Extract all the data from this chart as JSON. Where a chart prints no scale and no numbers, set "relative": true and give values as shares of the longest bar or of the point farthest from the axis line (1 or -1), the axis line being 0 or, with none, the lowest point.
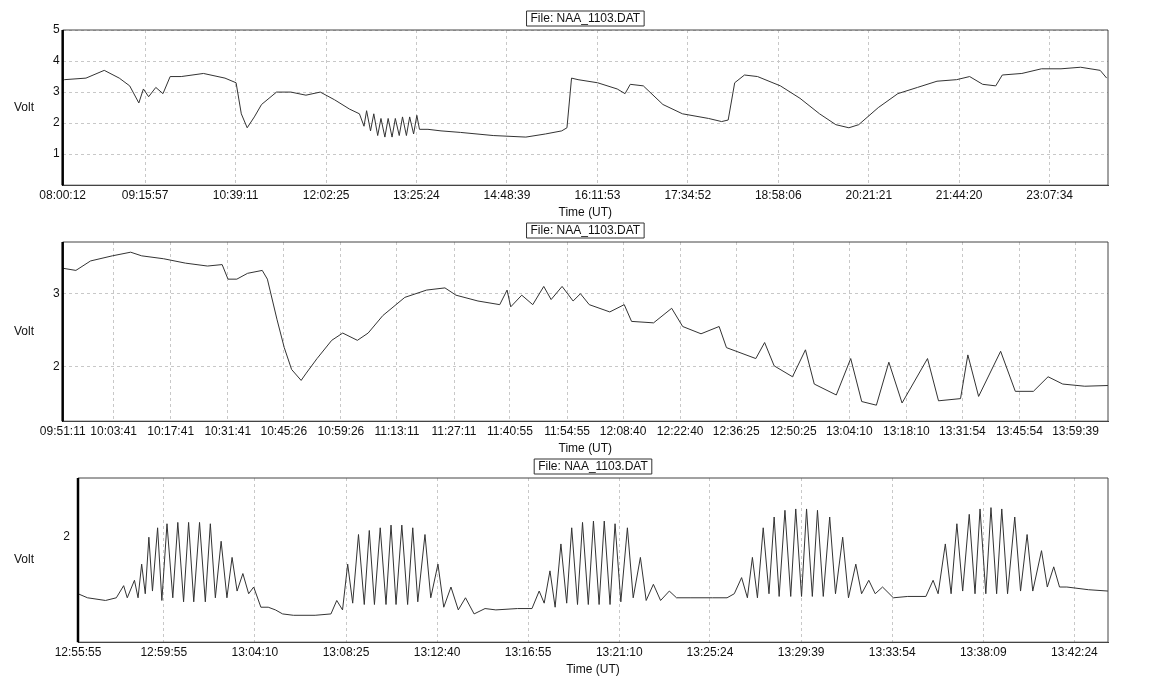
{
  "chart_data": [
    {
      "type": "line",
      "title": "File: NAA_1103.DAT",
      "xlabel": "Time (UT)",
      "ylabel": "Volt",
      "color": "#333333",
      "x": [
        8.003,
        8.03,
        8.36,
        8.64,
        8.87,
        9.03,
        9.17,
        9.24,
        9.32,
        9.43,
        9.54,
        9.65,
        9.82,
        10.16,
        10.49,
        10.66,
        10.74,
        10.83,
        10.94,
        11.05,
        11.28,
        11.5,
        11.73,
        11.95,
        12.17,
        12.4,
        12.55,
        12.62,
        12.66,
        12.72,
        12.77,
        12.83,
        12.88,
        12.94,
        12.99,
        13.05,
        13.1,
        13.16,
        13.21,
        13.27,
        13.32,
        13.38,
        13.43,
        13.47,
        13.6,
        13.8,
        14.1,
        14.6,
        15.1,
        15.4,
        15.65,
        15.73,
        15.8,
        15.9,
        16.2,
        16.5,
        16.62,
        16.7,
        16.9,
        17.2,
        17.5,
        17.9,
        18.1,
        18.2,
        18.3,
        18.45,
        18.65,
        19.0,
        19.3,
        19.6,
        19.85,
        20.05,
        20.2,
        20.5,
        20.8,
        21.1,
        21.4,
        21.7,
        21.9,
        22.1,
        22.3,
        22.4,
        22.7,
        23.0,
        23.3,
        23.6,
        23.9,
        24.0
      ],
      "values": [
        3.35,
        3.4,
        3.45,
        3.7,
        3.45,
        3.2,
        2.65,
        3.1,
        2.85,
        3.15,
        2.95,
        3.5,
        3.5,
        3.6,
        3.45,
        3.3,
        2.3,
        1.85,
        2.2,
        2.6,
        3.0,
        3.0,
        2.9,
        3.0,
        2.75,
        2.45,
        2.3,
        1.9,
        2.4,
        1.75,
        2.3,
        1.6,
        2.15,
        1.55,
        2.15,
        1.55,
        2.15,
        1.6,
        2.2,
        1.6,
        2.2,
        1.65,
        2.25,
        1.8,
        1.8,
        1.75,
        1.7,
        1.6,
        1.55,
        1.65,
        1.75,
        1.85,
        3.45,
        3.4,
        3.3,
        3.1,
        2.95,
        3.25,
        3.2,
        2.6,
        2.3,
        2.15,
        2.05,
        2.1,
        3.3,
        3.55,
        3.5,
        3.2,
        2.8,
        2.3,
        1.95,
        1.85,
        1.95,
        2.5,
        2.95,
        3.15,
        3.35,
        3.4,
        3.5,
        3.25,
        3.2,
        3.55,
        3.6,
        3.75,
        3.75,
        3.8,
        3.7,
        3.45
      ],
      "xlim": [
        8.003,
        24.02
      ],
      "xticks": [
        {
          "value": 8.0033,
          "label": "08:00:12"
        },
        {
          "value": 9.2658,
          "label": "09:15:57"
        },
        {
          "value": 10.6531,
          "label": "10:39:11"
        },
        {
          "value": 12.0403,
          "label": "12:02:25"
        },
        {
          "value": 13.4233,
          "label": "13:25:24"
        },
        {
          "value": 14.8108,
          "label": "14:48:39"
        },
        {
          "value": 16.1981,
          "label": "16:11:53"
        },
        {
          "value": 17.5811,
          "label": "17:34:52"
        },
        {
          "value": 18.9683,
          "label": "18:58:06"
        },
        {
          "value": 20.3558,
          "label": "20:21:21"
        },
        {
          "value": 21.7389,
          "label": "21:44:20"
        },
        {
          "value": 23.1261,
          "label": "23:07:34"
        }
      ],
      "ylim": [
        0,
        5
      ],
      "yticks": [
        1,
        2,
        3,
        4,
        5
      ],
      "grid": true
    },
    {
      "type": "line",
      "title": "File: NAA_1103.DAT",
      "xlabel": "Time (UT)",
      "ylabel": "Volt",
      "color": "#333333",
      "x": [
        9.853,
        9.907,
        9.967,
        10.056,
        10.131,
        10.176,
        10.266,
        10.355,
        10.445,
        10.505,
        10.529,
        10.565,
        10.609,
        10.669,
        10.69,
        10.729,
        10.759,
        10.789,
        10.828,
        10.849,
        10.893,
        10.953,
        10.998,
        11.058,
        11.102,
        11.162,
        11.252,
        11.341,
        11.416,
        11.461,
        11.551,
        11.64,
        11.67,
        11.685,
        11.73,
        11.775,
        11.82,
        11.85,
        11.895,
        11.94,
        11.97,
        12.006,
        12.09,
        12.149,
        12.179,
        12.269,
        12.343,
        12.388,
        12.463,
        12.537,
        12.567,
        12.687,
        12.723,
        12.762,
        12.837,
        12.89,
        12.926,
        13.016,
        13.075,
        13.12,
        13.18,
        13.231,
        13.285,
        13.389,
        13.434,
        13.524,
        13.554,
        13.598,
        13.688,
        13.748,
        13.822,
        13.882,
        13.942,
        14.032,
        14.127
      ],
      "values": [
        3.35,
        3.32,
        3.45,
        3.52,
        3.57,
        3.52,
        3.48,
        3.42,
        3.38,
        3.4,
        3.2,
        3.2,
        3.28,
        3.32,
        3.2,
        2.65,
        2.26,
        1.96,
        1.81,
        1.91,
        2.11,
        2.36,
        2.46,
        2.36,
        2.46,
        2.7,
        2.95,
        3.05,
        3.08,
        2.98,
        2.9,
        2.85,
        3.05,
        2.82,
        2.98,
        2.85,
        3.1,
        2.92,
        3.1,
        2.9,
        3.0,
        2.85,
        2.75,
        2.85,
        2.62,
        2.6,
        2.8,
        2.55,
        2.45,
        2.55,
        2.26,
        2.11,
        2.33,
        2.01,
        1.86,
        2.23,
        1.76,
        1.61,
        2.11,
        1.52,
        1.47,
        2.06,
        1.5,
        2.11,
        1.53,
        1.56,
        2.16,
        1.59,
        2.21,
        1.66,
        1.66,
        1.86,
        1.76,
        1.73,
        1.74
      ],
      "xlim": [
        9.853,
        14.127
      ],
      "xticks": [
        {
          "value": 9.8531,
          "label": "09:51:11"
        },
        {
          "value": 10.0614,
          "label": "10:03:41"
        },
        {
          "value": 10.2947,
          "label": "10:17:41"
        },
        {
          "value": 10.5281,
          "label": "10:31:41"
        },
        {
          "value": 10.7572,
          "label": "10:45:26"
        },
        {
          "value": 10.9906,
          "label": "10:59:26"
        },
        {
          "value": 11.2197,
          "label": "11:13:11"
        },
        {
          "value": 11.4531,
          "label": "11:27:11"
        },
        {
          "value": 11.6819,
          "label": "11:40:55"
        },
        {
          "value": 11.9153,
          "label": "11:54:55"
        },
        {
          "value": 12.1444,
          "label": "12:08:40"
        },
        {
          "value": 12.3778,
          "label": "12:22:40"
        },
        {
          "value": 12.6069,
          "label": "12:36:25"
        },
        {
          "value": 12.8403,
          "label": "12:50:25"
        },
        {
          "value": 13.0694,
          "label": "13:04:10"
        },
        {
          "value": 13.3028,
          "label": "13:18:10"
        },
        {
          "value": 13.5317,
          "label": "13:31:54"
        },
        {
          "value": 13.765,
          "label": "13:45:54"
        },
        {
          "value": 13.9942,
          "label": "13:59:39"
        }
      ],
      "ylim": [
        1.25,
        3.71
      ],
      "yticks": [
        2,
        3
      ],
      "grid": true
    },
    {
      "type": "line",
      "title": "File: NAA_1103.DAT",
      "xlabel": "Time (UT)",
      "ylabel": "Volt",
      "color": "#333333",
      "x": [
        12.9319,
        12.9393,
        12.9533,
        12.9617,
        12.9674,
        12.9702,
        12.9758,
        12.9786,
        12.9814,
        12.9842,
        12.987,
        12.9898,
        12.9938,
        12.9971,
        13.0011,
        13.0056,
        13.0095,
        13.014,
        13.0179,
        13.0219,
        13.0264,
        13.0309,
        13.0348,
        13.0387,
        13.0432,
        13.0477,
        13.0517,
        13.0556,
        13.0601,
        13.0646,
        13.0685,
        13.0741,
        13.0798,
        13.0854,
        13.091,
        13.0994,
        13.1163,
        13.1286,
        13.1331,
        13.1376,
        13.1416,
        13.1455,
        13.15,
        13.1545,
        13.1584,
        13.1624,
        13.1669,
        13.1714,
        13.1753,
        13.1792,
        13.1837,
        13.1882,
        13.1922,
        13.1961,
        13.2017,
        13.2062,
        13.2118,
        13.2163,
        13.2219,
        13.2276,
        13.2332,
        13.2399,
        13.2484,
        13.2568,
        13.2736,
        13.2849,
        13.2905,
        13.2944,
        13.2989,
        13.3029,
        13.3074,
        13.3119,
        13.3158,
        13.3203,
        13.3242,
        13.3287,
        13.3327,
        13.3371,
        13.3411,
        13.3456,
        13.3495,
        13.354,
        13.3591,
        13.3636,
        13.3692,
        13.3737,
        13.3793,
        13.3849,
        13.3917,
        13.3973,
        13.4085,
        13.4254,
        13.4366,
        13.4422,
        13.4479,
        13.4524,
        13.4563,
        13.4602,
        13.4647,
        13.4692,
        13.4732,
        13.4771,
        13.4816,
        13.4861,
        13.49,
        13.4945,
        13.4984,
        13.5029,
        13.5069,
        13.5114,
        13.5164,
        13.5209,
        13.5265,
        13.531,
        13.5367,
        13.5412,
        13.5468,
        13.5518,
        13.5575,
        13.5659,
        13.5771,
        13.5912,
        13.5968,
        13.6007,
        13.6063,
        13.6108,
        13.6153,
        13.6198,
        13.6249,
        13.6294,
        13.6333,
        13.6378,
        13.6418,
        13.6462,
        13.6502,
        13.6547,
        13.6603,
        13.6648,
        13.6699,
        13.6743,
        13.6811,
        13.6856,
        13.6906,
        13.6951,
        13.7008,
        13.7176,
        13.7328
      ],
      "values": [
        0.36,
        0.33,
        0.31,
        0.33,
        0.42,
        0.33,
        0.46,
        0.33,
        0.58,
        0.36,
        0.78,
        0.38,
        0.85,
        0.31,
        0.88,
        0.33,
        0.89,
        0.3,
        0.89,
        0.3,
        0.89,
        0.3,
        0.88,
        0.33,
        0.75,
        0.33,
        0.63,
        0.38,
        0.51,
        0.36,
        0.41,
        0.26,
        0.26,
        0.24,
        0.21,
        0.2,
        0.2,
        0.21,
        0.31,
        0.24,
        0.58,
        0.29,
        0.8,
        0.28,
        0.83,
        0.28,
        0.85,
        0.28,
        0.87,
        0.28,
        0.87,
        0.28,
        0.85,
        0.3,
        0.8,
        0.33,
        0.58,
        0.26,
        0.41,
        0.24,
        0.33,
        0.21,
        0.25,
        0.24,
        0.25,
        0.25,
        0.38,
        0.29,
        0.53,
        0.26,
        0.73,
        0.29,
        0.85,
        0.28,
        0.89,
        0.28,
        0.9,
        0.28,
        0.9,
        0.28,
        0.88,
        0.3,
        0.85,
        0.33,
        0.63,
        0.31,
        0.43,
        0.31,
        0.38,
        0.33,
        0.33,
        0.33,
        0.33,
        0.36,
        0.48,
        0.33,
        0.63,
        0.33,
        0.85,
        0.36,
        0.93,
        0.34,
        0.98,
        0.34,
        0.99,
        0.34,
        0.99,
        0.34,
        0.98,
        0.34,
        0.93,
        0.36,
        0.78,
        0.33,
        0.58,
        0.36,
        0.46,
        0.36,
        0.41,
        0.33,
        0.34,
        0.34,
        0.46,
        0.36,
        0.73,
        0.36,
        0.88,
        0.38,
        0.95,
        0.36,
        0.99,
        0.36,
        1.0,
        0.36,
        0.99,
        0.36,
        0.93,
        0.38,
        0.8,
        0.38,
        0.68,
        0.41,
        0.56,
        0.41,
        0.41,
        0.39,
        0.38
      ],
      "xlim": [
        12.9319,
        13.7328
      ],
      "xticks": [
        {
          "value": 12.9319,
          "label": "12:55:55"
        },
        {
          "value": 12.9986,
          "label": "12:59:55"
        },
        {
          "value": 13.0694,
          "label": "13:04:10"
        },
        {
          "value": 13.1403,
          "label": "13:08:25"
        },
        {
          "value": 13.2111,
          "label": "13:12:40"
        },
        {
          "value": 13.2819,
          "label": "13:16:55"
        },
        {
          "value": 13.3528,
          "label": "13:21:10"
        },
        {
          "value": 13.4233,
          "label": "13:25:24"
        },
        {
          "value": 13.4942,
          "label": "13:29:39"
        },
        {
          "value": 13.565,
          "label": "13:33:54"
        },
        {
          "value": 13.6358,
          "label": "13:38:09"
        },
        {
          "value": 13.7067,
          "label": "13:42:24"
        }
      ],
      "relative": true,
      "annotations": [
        "2"
      ],
      "grid": "x"
    }
  ]
}
